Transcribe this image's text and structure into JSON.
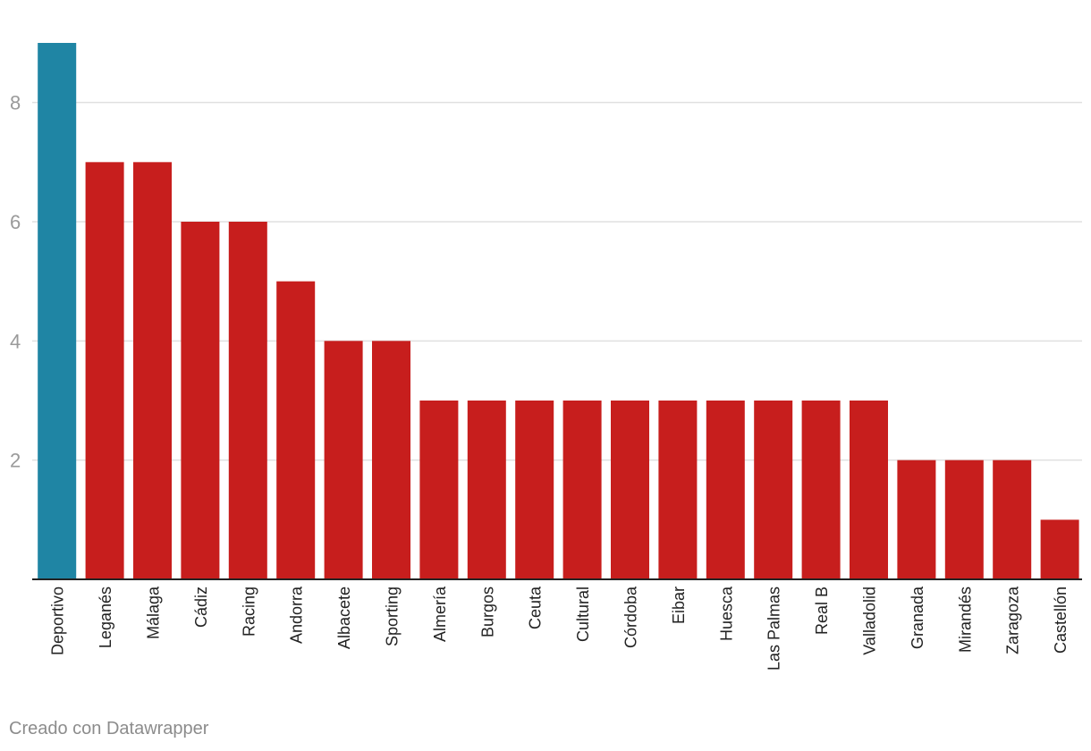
{
  "chart_data": {
    "type": "bar",
    "categories": [
      "Deportivo",
      "Leganés",
      "Málaga",
      "Cádiz",
      "Racing",
      "Andorra",
      "Albacete",
      "Sporting",
      "Almería",
      "Burgos",
      "Ceuta",
      "Cultural",
      "Córdoba",
      "Eibar",
      "Huesca",
      "Las Palmas",
      "Real B",
      "Valladolid",
      "Granada",
      "Mirandés",
      "Zaragoza",
      "Castellón"
    ],
    "values": [
      9,
      7,
      7,
      6,
      6,
      5,
      4,
      4,
      3,
      3,
      3,
      3,
      3,
      3,
      3,
      3,
      3,
      3,
      2,
      2,
      2,
      1
    ],
    "highlight_index": 0,
    "ylim": [
      0,
      9
    ],
    "yticks": [
      2,
      4,
      6,
      8
    ],
    "grid": true,
    "colors": {
      "highlight": "#1f85a4",
      "bar": "#c71e1d",
      "grid": "#e0e0e0",
      "axis": "#222222",
      "tick_label": "#9a9a9a",
      "category_label": "#222222"
    }
  },
  "footer": {
    "credit": "Creado con Datawrapper"
  }
}
